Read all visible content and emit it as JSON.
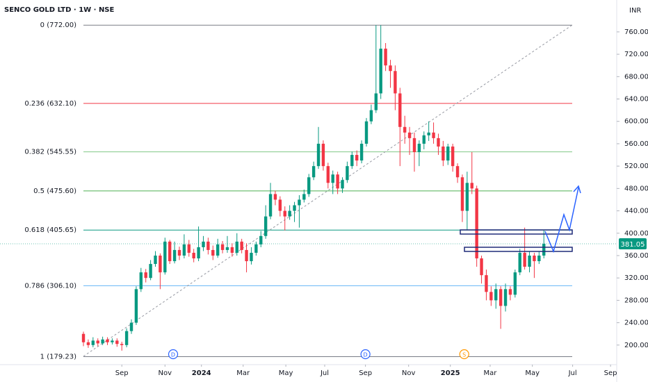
{
  "chart_data": {
    "type": "candlestick",
    "title": "SENCO GOLD LTD · 1W · NSE",
    "currency": "INR",
    "up_color": "#089981",
    "down_color": "#f23645",
    "ylim": [
      165,
      817
    ],
    "xlim": [
      -17.4,
      110.9
    ],
    "yticks": [
      {
        "value": 200,
        "label": "200.00"
      },
      {
        "value": 240,
        "label": "240.00"
      },
      {
        "value": 280,
        "label": "280.00"
      },
      {
        "value": 320,
        "label": "320.00"
      },
      {
        "value": 360,
        "label": "360.00"
      },
      {
        "value": 400,
        "label": "400.00"
      },
      {
        "value": 440,
        "label": "440.00"
      },
      {
        "value": 480,
        "label": "480.00"
      },
      {
        "value": 520,
        "label": "520.00"
      },
      {
        "value": 560,
        "label": "560.00"
      },
      {
        "value": 600,
        "label": "600.00"
      },
      {
        "value": 640,
        "label": "640.00"
      },
      {
        "value": 680,
        "label": "680.00"
      },
      {
        "value": 720,
        "label": "720.00"
      },
      {
        "value": 760,
        "label": "760.00"
      }
    ],
    "xticks": [
      {
        "value": 8,
        "label": "Sep"
      },
      {
        "value": 17,
        "label": "Nov"
      },
      {
        "value": 24.6,
        "label": "2024"
      },
      {
        "value": 33.3,
        "label": "Mar"
      },
      {
        "value": 42.2,
        "label": "May"
      },
      {
        "value": 50.3,
        "label": "Jul"
      },
      {
        "value": 58.8,
        "label": "Sep"
      },
      {
        "value": 67.8,
        "label": "Nov"
      },
      {
        "value": 76.5,
        "label": "2025"
      },
      {
        "value": 84.8,
        "label": "Mar"
      },
      {
        "value": 93.6,
        "label": "May"
      },
      {
        "value": 102,
        "label": "Jul"
      },
      {
        "value": 109.9,
        "label": "Sep"
      }
    ],
    "open": [
      220,
      205,
      200,
      208,
      203,
      210,
      205,
      208,
      202,
      200,
      225,
      240,
      300,
      330,
      320,
      345,
      360,
      330,
      385,
      350,
      370,
      360,
      380,
      365,
      355,
      375,
      385,
      370,
      360,
      380,
      370,
      375,
      365,
      385,
      370,
      350,
      365,
      380,
      395,
      430,
      470,
      460,
      440,
      430,
      440,
      450,
      460,
      470,
      500,
      520,
      560,
      520,
      490,
      505,
      480,
      495,
      520,
      540,
      530,
      560,
      600,
      620,
      650,
      730,
      700,
      690,
      650,
      590,
      580,
      570,
      545,
      560,
      575,
      580,
      570,
      555,
      530,
      555,
      520,
      500,
      440,
      490,
      480,
      355,
      325,
      295,
      280,
      300,
      270,
      300,
      290,
      330,
      365,
      340,
      360,
      350,
      360
    ],
    "high": [
      224,
      210,
      214,
      212,
      215,
      214,
      212,
      212,
      206,
      230,
      246,
      305,
      338,
      336,
      352,
      368,
      364,
      392,
      388,
      385,
      376,
      398,
      388,
      372,
      412,
      395,
      392,
      378,
      390,
      386,
      395,
      382,
      400,
      390,
      382,
      375,
      385,
      404,
      450,
      490,
      476,
      466,
      448,
      450,
      456,
      468,
      478,
      506,
      528,
      590,
      566,
      526,
      512,
      510,
      500,
      528,
      546,
      548,
      566,
      606,
      630,
      772,
      772,
      740,
      710,
      700,
      660,
      610,
      590,
      580,
      566,
      582,
      600,
      598,
      578,
      565,
      560,
      560,
      525,
      505,
      510,
      545,
      485,
      360,
      335,
      305,
      310,
      305,
      310,
      305,
      335,
      372,
      410,
      368,
      365,
      368,
      405
    ],
    "low": [
      198,
      195,
      196,
      198,
      200,
      200,
      201,
      197,
      190,
      196,
      220,
      236,
      295,
      312,
      316,
      340,
      300,
      326,
      345,
      346,
      352,
      355,
      358,
      348,
      350,
      368,
      362,
      352,
      356,
      364,
      365,
      358,
      360,
      364,
      330,
      344,
      360,
      375,
      390,
      425,
      450,
      430,
      405,
      424,
      420,
      410,
      455,
      465,
      495,
      515,
      512,
      480,
      470,
      470,
      472,
      490,
      515,
      520,
      525,
      555,
      595,
      615,
      640,
      690,
      660,
      620,
      520,
      560,
      540,
      510,
      520,
      550,
      565,
      560,
      540,
      520,
      522,
      510,
      490,
      420,
      405,
      470,
      340,
      310,
      280,
      270,
      265,
      229,
      260,
      280,
      285,
      325,
      335,
      330,
      320,
      345,
      355
    ],
    "close": [
      205,
      200,
      208,
      203,
      210,
      205,
      208,
      202,
      200,
      225,
      240,
      300,
      330,
      320,
      345,
      360,
      330,
      385,
      350,
      370,
      360,
      380,
      365,
      355,
      375,
      385,
      370,
      360,
      380,
      370,
      375,
      365,
      385,
      370,
      350,
      365,
      380,
      395,
      430,
      470,
      460,
      440,
      430,
      440,
      450,
      460,
      470,
      500,
      520,
      560,
      520,
      490,
      505,
      480,
      495,
      520,
      540,
      530,
      560,
      600,
      620,
      650,
      730,
      700,
      690,
      650,
      590,
      580,
      570,
      545,
      560,
      575,
      580,
      570,
      555,
      530,
      555,
      520,
      500,
      440,
      490,
      480,
      355,
      325,
      295,
      280,
      300,
      270,
      300,
      290,
      330,
      365,
      340,
      360,
      350,
      360,
      381.05
    ],
    "last_price": 381.05,
    "fib_levels": [
      {
        "label": "0 (772.00)",
        "value": 772,
        "color": "#787b86"
      },
      {
        "label": "0.236 (632.10)",
        "value": 632.1,
        "color": "#f23645"
      },
      {
        "label": "0.382 (545.55)",
        "value": 545.55,
        "color": "#81c784"
      },
      {
        "label": "0.5 (475.60)",
        "value": 475.6,
        "color": "#4caf50"
      },
      {
        "label": "0.618 (405.65)",
        "value": 405.65,
        "color": "#089981"
      },
      {
        "label": "0.786 (306.10)",
        "value": 306.1,
        "color": "#64b5f6"
      },
      {
        "label": "1 (179.23)",
        "value": 179.23,
        "color": "#787b86"
      }
    ],
    "events": [
      {
        "value": 18.7,
        "label": "D",
        "color": "#2962ff"
      },
      {
        "value": 58.8,
        "label": "D",
        "color": "#2962ff"
      },
      {
        "value": 79.4,
        "label": "S",
        "color": "#ff9800"
      }
    ]
  }
}
